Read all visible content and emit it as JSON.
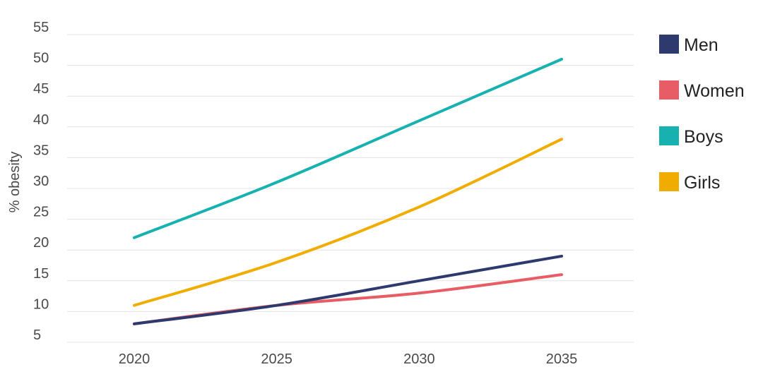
{
  "chart_data": {
    "type": "line",
    "title": "",
    "xlabel": "",
    "ylabel": "% obesity",
    "x": [
      2020,
      2025,
      2030,
      2035
    ],
    "ylim": [
      5,
      55
    ],
    "yticks": [
      5,
      10,
      15,
      20,
      25,
      30,
      35,
      40,
      45,
      50,
      55
    ],
    "grid": true,
    "legend_position": "right",
    "series": [
      {
        "name": "Men",
        "color": "#2e3a6e",
        "values": [
          8,
          11,
          15,
          19
        ]
      },
      {
        "name": "Women",
        "color": "#e85d65",
        "values": [
          8,
          11,
          13,
          16
        ]
      },
      {
        "name": "Boys",
        "color": "#17b2b0",
        "values": [
          22,
          31,
          41,
          51
        ]
      },
      {
        "name": "Girls",
        "color": "#f0ad00",
        "values": [
          11,
          18,
          27,
          38
        ]
      }
    ]
  }
}
